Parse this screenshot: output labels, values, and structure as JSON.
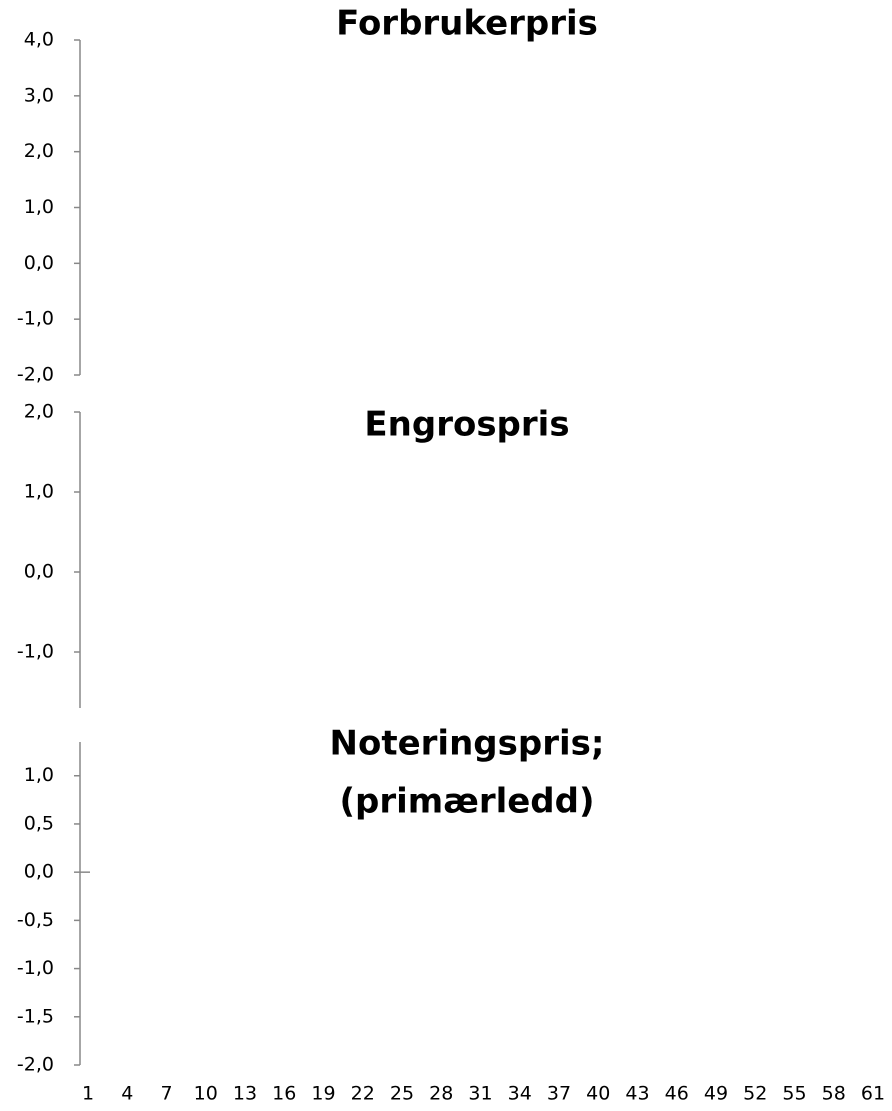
{
  "chart_data": [
    {
      "type": "line",
      "title": "Forbrukerpris",
      "ylim": [
        -2.0,
        4.0
      ],
      "yticks": [
        {
          "value": 4,
          "label": "4,0"
        },
        {
          "value": 3,
          "label": "3,0"
        },
        {
          "value": 2,
          "label": "2,0"
        },
        {
          "value": 1,
          "label": "1,0"
        },
        {
          "value": 0,
          "label": "0,0"
        },
        {
          "value": -1,
          "label": "-1,0"
        },
        {
          "value": -2,
          "label": "-2,0"
        }
      ]
    },
    {
      "type": "line",
      "title": "Engrospris",
      "ylim": [
        -1.7,
        2.0
      ],
      "yticks": [
        {
          "value": 2,
          "label": "2,0"
        },
        {
          "value": 1,
          "label": "1,0"
        },
        {
          "value": 0,
          "label": "0,0"
        },
        {
          "value": -1,
          "label": "-1,0"
        }
      ]
    },
    {
      "type": "line",
      "title": [
        "Noteringspris;",
        "(primærledd)"
      ],
      "ylim": [
        -2.0,
        1.35
      ],
      "yticks": [
        {
          "value": 1,
          "label": "1,0"
        },
        {
          "value": 0.5,
          "label": "0,5"
        },
        {
          "value": 0,
          "label": "0,0"
        },
        {
          "value": -0.5,
          "label": "-0,5"
        },
        {
          "value": -1,
          "label": "-1,0"
        },
        {
          "value": -1.5,
          "label": "-1,5"
        },
        {
          "value": -2,
          "label": "-2,0"
        }
      ],
      "xlim": [
        1,
        61
      ],
      "xticks": [
        1,
        4,
        7,
        10,
        13,
        16,
        19,
        22,
        25,
        28,
        31,
        34,
        37,
        40,
        43,
        46,
        49,
        52,
        55,
        58,
        61
      ]
    }
  ]
}
